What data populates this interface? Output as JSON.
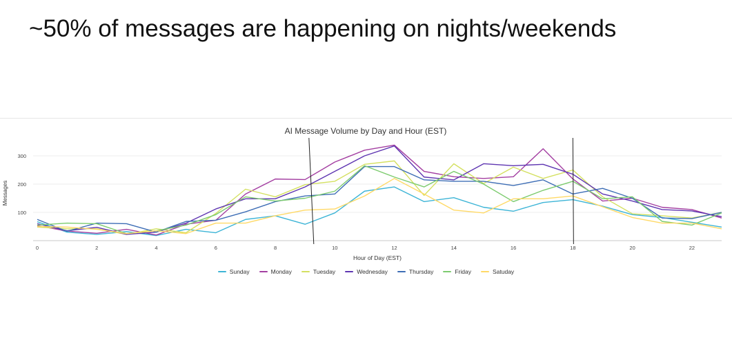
{
  "slide": {
    "title": "~50% of messages are happening on nights/weekends"
  },
  "chart_data": {
    "type": "line",
    "title": "AI Message Volume by Day and Hour (EST)",
    "xlabel": "Hour of Day (EST)",
    "ylabel": "Messages",
    "x": [
      0,
      1,
      2,
      3,
      4,
      5,
      6,
      7,
      8,
      9,
      10,
      11,
      12,
      13,
      14,
      15,
      16,
      17,
      18,
      19,
      20,
      21,
      22,
      23
    ],
    "xticks": [
      0,
      2,
      4,
      6,
      8,
      10,
      12,
      14,
      16,
      18,
      20,
      22
    ],
    "yticks": [
      100,
      200,
      300
    ],
    "xlim": [
      0,
      23
    ],
    "ylim": [
      0,
      340
    ],
    "grid": true,
    "legend_position": "bottom",
    "vertical_markers": [
      9.2,
      18
    ],
    "series": [
      {
        "name": "Sunday",
        "color": "#3cb4d6",
        "values": [
          67,
          30,
          22,
          32,
          18,
          40,
          28,
          75,
          88,
          58,
          98,
          175,
          190,
          138,
          152,
          118,
          104,
          135,
          145,
          122,
          92,
          82,
          65,
          48
        ]
      },
      {
        "name": "Monday",
        "color": "#a33ea1",
        "values": [
          53,
          34,
          26,
          40,
          20,
          58,
          72,
          165,
          218,
          216,
          278,
          320,
          338,
          245,
          226,
          220,
          226,
          325,
          218,
          140,
          150,
          118,
          110,
          80
        ]
      },
      {
        "name": "Tuesday",
        "color": "#d4e060",
        "values": [
          48,
          42,
          42,
          22,
          42,
          28,
          96,
          182,
          155,
          198,
          210,
          270,
          282,
          160,
          272,
          202,
          260,
          220,
          250,
          155,
          95,
          88,
          80,
          100
        ]
      },
      {
        "name": "Wednesday",
        "color": "#5e35b1",
        "values": [
          60,
          35,
          47,
          22,
          30,
          62,
          112,
          148,
          148,
          190,
          245,
          300,
          335,
          225,
          215,
          272,
          265,
          270,
          235,
          165,
          140,
          110,
          105,
          85
        ]
      },
      {
        "name": "Thursday",
        "color": "#3d6db5",
        "values": [
          75,
          33,
          62,
          60,
          30,
          68,
          72,
          102,
          138,
          158,
          165,
          262,
          262,
          215,
          210,
          210,
          195,
          215,
          165,
          185,
          150,
          80,
          78,
          100
        ]
      },
      {
        "name": "Friday",
        "color": "#7ccb6e",
        "values": [
          55,
          62,
          60,
          25,
          35,
          55,
          92,
          155,
          140,
          150,
          175,
          265,
          225,
          190,
          245,
          200,
          138,
          178,
          210,
          148,
          155,
          68,
          55,
          98
        ]
      },
      {
        "name": "Satuday",
        "color": "#ffd966",
        "values": [
          50,
          48,
          40,
          25,
          35,
          25,
          62,
          62,
          88,
          108,
          112,
          158,
          220,
          165,
          108,
          98,
          148,
          148,
          158,
          120,
          82,
          62,
          62,
          42
        ]
      }
    ]
  }
}
